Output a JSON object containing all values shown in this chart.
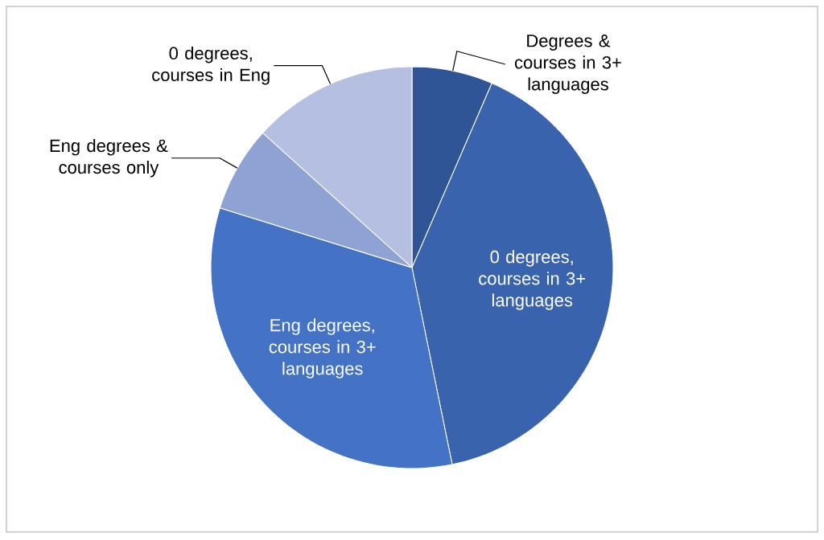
{
  "chart_data": {
    "type": "pie",
    "categories": [
      "Degrees & courses in 3+ languages",
      "0 degrees, courses in 3+ languages",
      "Eng degrees, courses in 3+ languages",
      "Eng degrees & courses only",
      "0 degrees, courses in Eng"
    ],
    "values": [
      6.5,
      40.3,
      33,
      6.9,
      13.3
    ],
    "colors": [
      "#2f5597",
      "#3a63ad",
      "#4472c4",
      "#8fa2d4",
      "#b4bfe2"
    ]
  }
}
